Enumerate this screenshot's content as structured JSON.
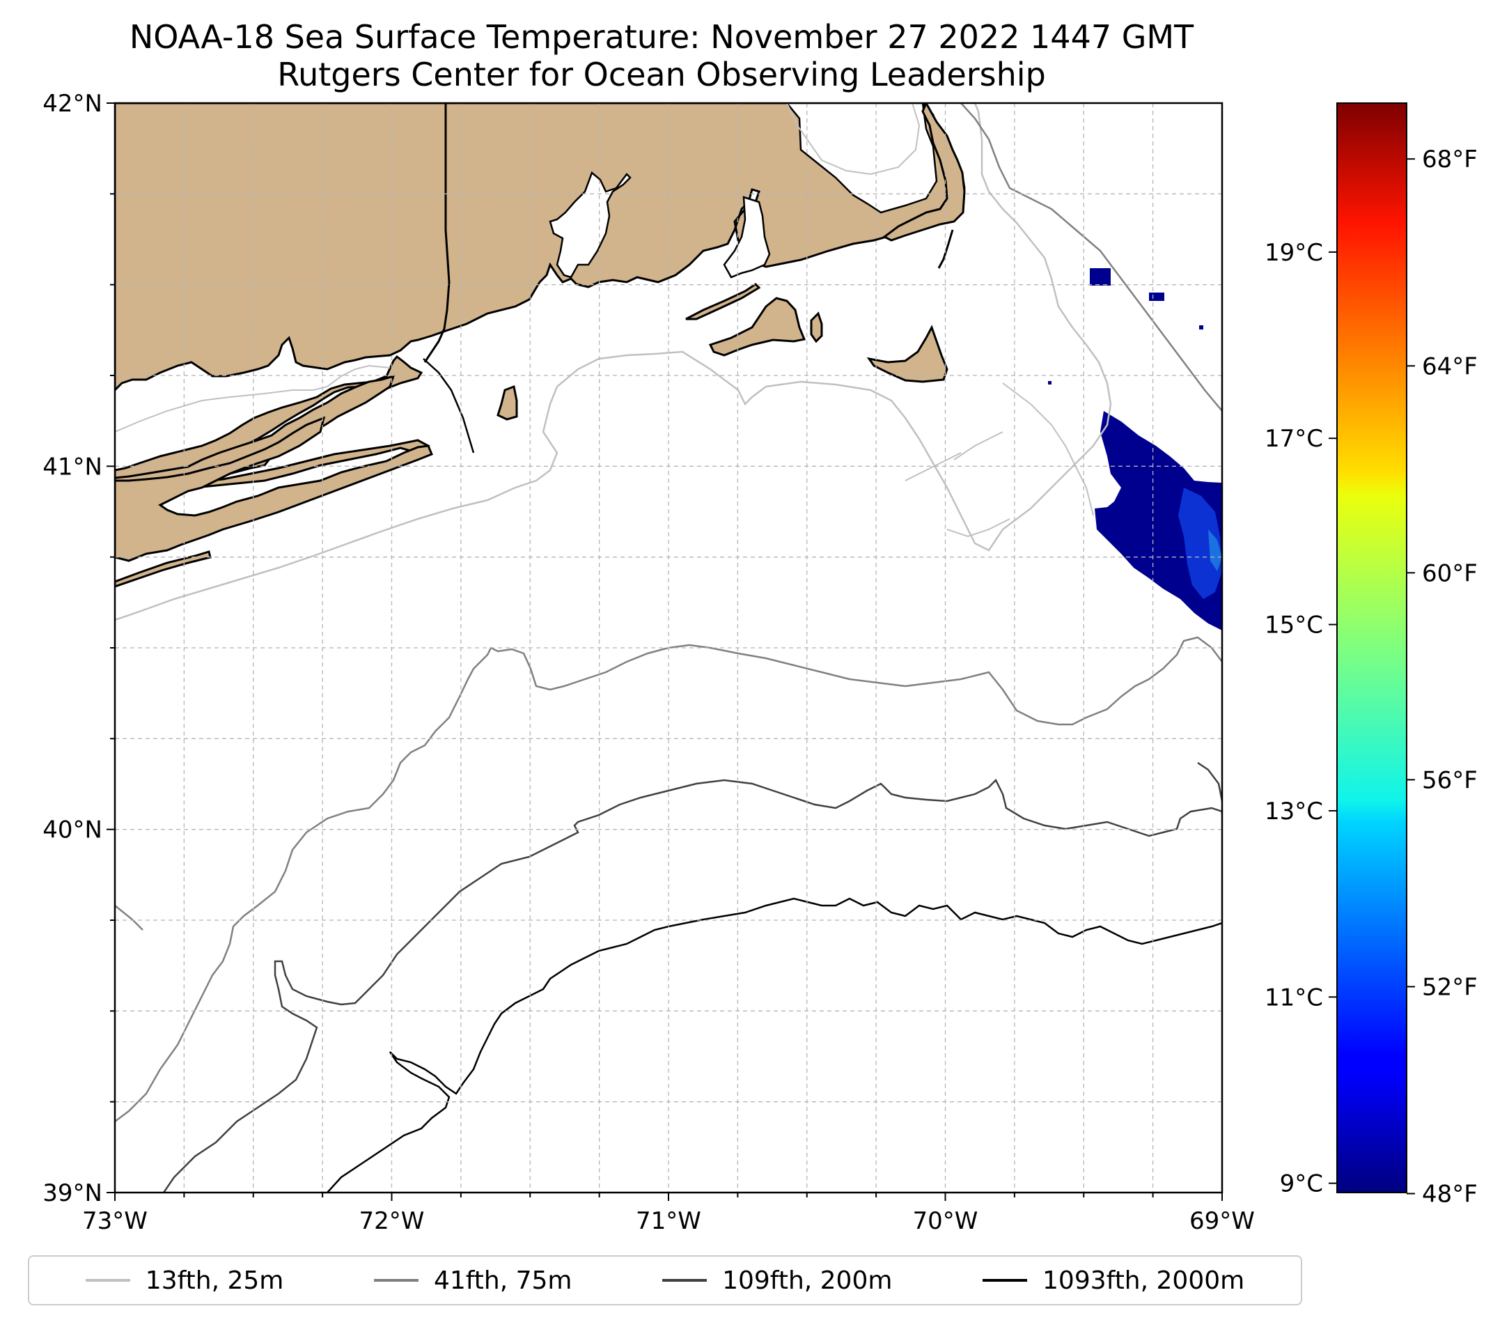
{
  "title_line1": "NOAA-18 Sea Surface Temperature: November 27 2022 1447 GMT",
  "title_line2": "Rutgers Center for Ocean Observing Leadership",
  "map": {
    "lon_range": [
      -73,
      -69
    ],
    "lat_range": [
      39,
      42
    ],
    "lon_ticks": [
      {
        "value": -73,
        "label": "73°W"
      },
      {
        "value": -72,
        "label": "72°W"
      },
      {
        "value": -71,
        "label": "71°W"
      },
      {
        "value": -70,
        "label": "70°W"
      },
      {
        "value": -69,
        "label": "69°W"
      }
    ],
    "lat_ticks": [
      {
        "value": 39,
        "label": "39°N"
      },
      {
        "value": 40,
        "label": "40°N"
      },
      {
        "value": 41,
        "label": "41°N"
      },
      {
        "value": 42,
        "label": "42°N"
      }
    ],
    "minor_gridline_step_deg": 0.25,
    "grid": "dashed",
    "land_color": "#d2b48c",
    "sst_patch_color": "#00008f"
  },
  "colorbar": {
    "colormap": "jet",
    "range_c": [
      8.9,
      20.6
    ],
    "celsius_ticks": [
      {
        "value": 9,
        "label": "9°C"
      },
      {
        "value": 11,
        "label": "11°C"
      },
      {
        "value": 13,
        "label": "13°C"
      },
      {
        "value": 15,
        "label": "15°C"
      },
      {
        "value": 17,
        "label": "17°C"
      },
      {
        "value": 19,
        "label": "19°C"
      }
    ],
    "fahrenheit_ticks": [
      {
        "value": 48,
        "label": "48°F"
      },
      {
        "value": 52,
        "label": "52°F"
      },
      {
        "value": 56,
        "label": "56°F"
      },
      {
        "value": 60,
        "label": "60°F"
      },
      {
        "value": 64,
        "label": "64°F"
      },
      {
        "value": 68,
        "label": "68°F"
      }
    ]
  },
  "legend": [
    {
      "label": "13fth, 25m",
      "color": "#c0c0c0"
    },
    {
      "label": "41fth, 75m",
      "color": "#808080"
    },
    {
      "label": "109fth, 200m",
      "color": "#404040"
    },
    {
      "label": "1093fth, 2000m",
      "color": "#000000"
    }
  ]
}
